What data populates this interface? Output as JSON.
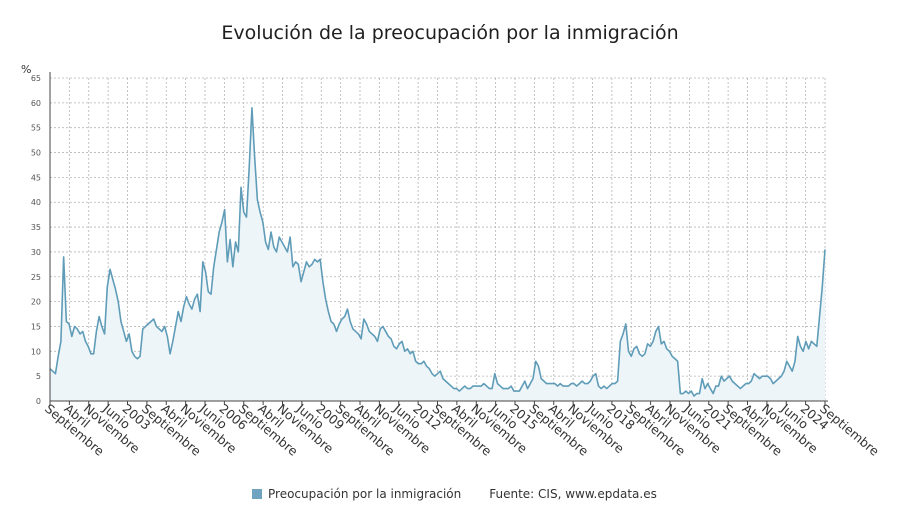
{
  "title": "Evolución de la preocupación por la inmigración",
  "y_unit": "%",
  "legend": {
    "series_label": "Preocupación por la inmigración",
    "source": "Fuente: CIS, www.epdata.es"
  },
  "colors": {
    "line": "#5f9cb8",
    "area": "#eef5f9",
    "grid": "#b5b5b5",
    "axis": "#444444"
  },
  "chart_data": {
    "type": "area",
    "title": "Evolución de la preocupación por la inmigración",
    "ylabel": "%",
    "ylim": [
      0,
      65
    ],
    "y_ticks": [
      0,
      5,
      10,
      15,
      20,
      25,
      30,
      35,
      40,
      45,
      50,
      55,
      60,
      65
    ],
    "grid": true,
    "legend_position": "bottom",
    "x_tick_labels": [
      "Septiembre",
      "Abril",
      "Noviembre",
      "Junio",
      "2003",
      "Septiembre",
      "Abril",
      "Noviembre",
      "Junio",
      "2006",
      "Septiembre",
      "Abril",
      "Noviembre",
      "Junio",
      "2009",
      "Septiembre",
      "Abril",
      "Noviembre",
      "Junio",
      "2012",
      "Septiembre",
      "Abril",
      "Noviembre",
      "Junio",
      "2015",
      "Septiembre",
      "Abril",
      "Noviembre",
      "Junio",
      "2018",
      "Septiembre",
      "Abril",
      "Noviembre",
      "Junio",
      "2021",
      "Septiembre",
      "Abril",
      "Noviembre",
      "Junio",
      "2024",
      "Septiembre"
    ],
    "series": [
      {
        "name": "Preocupación por la inmigración",
        "values": [
          6.5,
          6,
          5.5,
          9,
          12,
          29,
          16,
          15.5,
          13,
          15,
          14.5,
          13.5,
          14,
          12,
          11,
          9.5,
          9.5,
          14,
          17,
          15,
          13.5,
          23,
          26.5,
          24.5,
          22.5,
          20,
          16,
          14,
          12,
          13.5,
          10,
          9,
          8.5,
          9,
          14.5,
          15,
          15.5,
          16,
          16.5,
          15,
          14.5,
          14,
          15,
          13,
          9.5,
          12,
          15,
          18,
          16,
          19,
          21,
          19.5,
          18.5,
          20.5,
          21.5,
          18,
          28,
          26,
          22,
          21.5,
          27,
          30.5,
          34,
          36,
          38.5,
          28,
          32.5,
          27,
          32,
          30,
          43,
          38,
          37,
          47,
          59,
          49,
          40.5,
          38,
          36,
          32,
          30.5,
          34,
          31,
          30,
          33,
          32,
          31,
          30,
          33,
          27,
          28,
          27.5,
          24,
          26,
          28,
          27,
          27.5,
          28.5,
          28,
          28.5,
          24,
          20.5,
          18,
          16,
          15.5,
          14,
          15.5,
          16.5,
          17,
          18.5,
          16,
          14.5,
          14,
          13.5,
          12.5,
          16.5,
          15.5,
          14,
          13.5,
          13,
          12,
          14.5,
          15,
          14,
          13,
          12.5,
          11,
          10.5,
          11.5,
          12,
          10,
          10.5,
          9.5,
          10,
          8,
          7.5,
          7.5,
          8,
          7,
          6.5,
          5.5,
          5,
          5.5,
          6,
          4.5,
          4,
          3.5,
          3,
          2.5,
          2.5,
          2,
          2.5,
          3,
          2.5,
          2.5,
          3,
          3,
          3,
          3,
          3.5,
          3,
          2.5,
          2.5,
          5.5,
          3.5,
          3,
          2.5,
          2.5,
          2.5,
          3,
          2,
          2,
          2,
          3,
          4,
          2.5,
          3.5,
          4.5,
          8,
          7,
          4.5,
          4,
          3.5,
          3.5,
          3.5,
          3.5,
          3,
          3.5,
          3,
          3,
          3,
          3.5,
          3.5,
          3,
          3.5,
          4,
          3.5,
          3.5,
          4,
          5,
          5.5,
          3,
          2.5,
          3,
          2.5,
          3,
          3.5,
          3.5,
          4,
          12,
          13.5,
          15.5,
          10,
          9,
          10.5,
          11,
          9.5,
          9,
          9.5,
          11.5,
          11,
          12,
          14,
          15,
          11.5,
          12,
          10.5,
          10,
          9,
          8.5,
          8,
          1.5,
          1.5,
          2,
          1.5,
          2,
          1,
          1.5,
          1.5,
          4.5,
          2.5,
          3.5,
          2.5,
          1.5,
          3,
          3,
          5,
          4,
          4.5,
          5,
          4,
          3.5,
          3,
          2.5,
          3,
          3.5,
          3.5,
          4,
          5.5,
          5,
          4.5,
          5,
          5,
          5,
          4.5,
          3.5,
          4,
          4.5,
          5,
          6,
          8,
          7,
          6,
          8,
          13,
          11,
          10,
          12,
          10.5,
          12,
          11.5,
          11,
          17,
          23,
          30.5
        ]
      }
    ]
  }
}
